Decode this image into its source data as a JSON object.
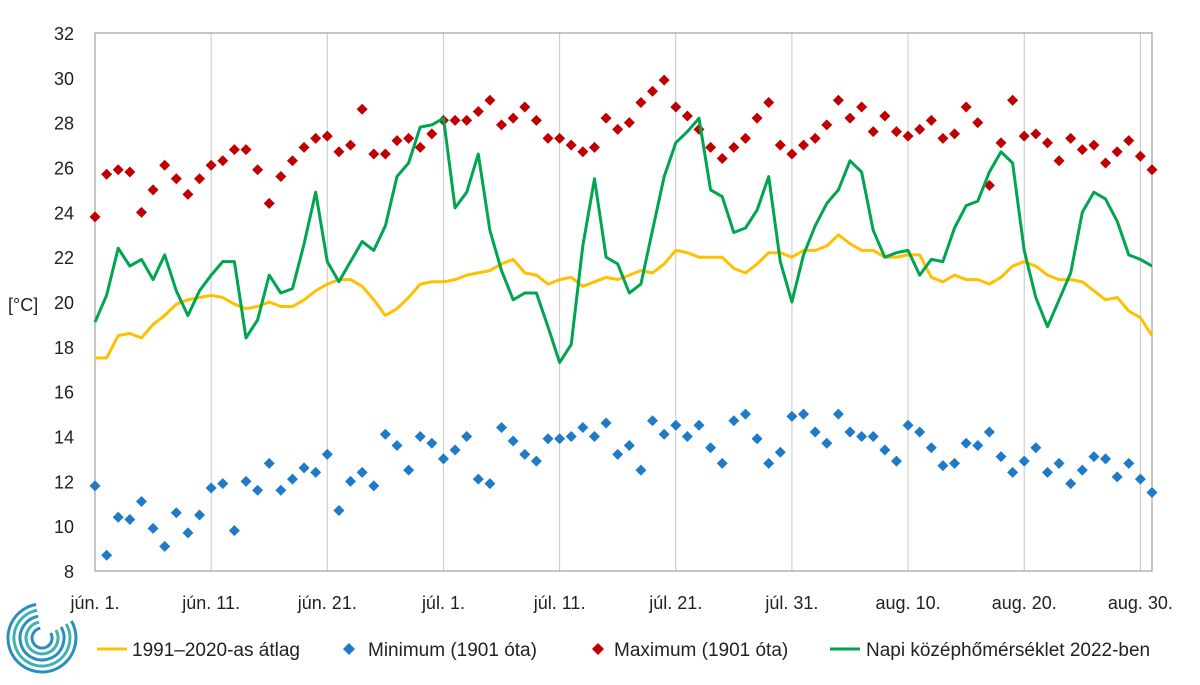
{
  "chart_data": {
    "type": "line",
    "title": "",
    "xlabel": "",
    "ylabel": "[°C]",
    "ylim": [
      8,
      32
    ],
    "yticks": [
      8,
      10,
      12,
      14,
      16,
      18,
      20,
      22,
      24,
      26,
      28,
      30,
      32
    ],
    "x_start": "jún. 1.",
    "x_end": "aug. 31.",
    "xtick_labels": [
      "jún. 1.",
      "jún. 11.",
      "jún. 21.",
      "júl. 1.",
      "júl. 11.",
      "júl. 21.",
      "júl. 31.",
      "aug. 10.",
      "aug. 20.",
      "aug. 30."
    ],
    "grid": "vertical",
    "legend_position": "bottom",
    "series": [
      {
        "name": "1991–2020-as átlag",
        "color": "#FFC000",
        "kind": "line",
        "values": [
          17.5,
          17.5,
          18.5,
          18.6,
          18.4,
          19.0,
          19.4,
          19.9,
          20.1,
          20.2,
          20.3,
          20.2,
          19.9,
          19.7,
          19.8,
          20.0,
          19.8,
          19.8,
          20.1,
          20.5,
          20.8,
          21.0,
          21.0,
          20.7,
          20.1,
          19.4,
          19.7,
          20.2,
          20.8,
          20.9,
          20.9,
          21.0,
          21.2,
          21.3,
          21.4,
          21.7,
          21.9,
          21.3,
          21.2,
          20.8,
          21.0,
          21.1,
          20.7,
          20.9,
          21.1,
          21.0,
          21.2,
          21.4,
          21.3,
          21.7,
          22.3,
          22.2,
          22.0,
          22.0,
          22.0,
          21.5,
          21.3,
          21.7,
          22.2,
          22.2,
          22.0,
          22.3,
          22.3,
          22.5,
          23.0,
          22.6,
          22.3,
          22.3,
          22.0,
          22.0,
          22.1,
          22.1,
          21.1,
          20.9,
          21.2,
          21.0,
          21.0,
          20.8,
          21.1,
          21.6,
          21.8,
          21.6,
          21.2,
          21.0,
          21.0,
          20.9,
          20.5,
          20.1,
          20.2,
          19.6,
          19.3,
          18.5
        ]
      },
      {
        "name": "Minimum (1901 óta)",
        "color": "#1F7AC8",
        "kind": "scatter",
        "marker": "diamond",
        "values": [
          11.8,
          8.7,
          10.4,
          10.3,
          11.1,
          9.9,
          9.1,
          10.6,
          9.7,
          10.5,
          11.7,
          11.9,
          9.8,
          12.0,
          11.6,
          12.8,
          11.6,
          12.1,
          12.6,
          12.4,
          13.2,
          10.7,
          12.0,
          12.4,
          11.8,
          14.1,
          13.6,
          12.5,
          14.0,
          13.7,
          13.0,
          13.4,
          14.0,
          12.1,
          11.9,
          14.4,
          13.8,
          13.2,
          12.9,
          13.9,
          13.9,
          14.0,
          14.4,
          14.0,
          14.6,
          13.2,
          13.6,
          12.5,
          14.7,
          14.1,
          14.5,
          14.0,
          14.5,
          13.5,
          12.8,
          14.7,
          15.0,
          13.9,
          12.8,
          13.3,
          14.9,
          15.0,
          14.2,
          13.7,
          15.0,
          14.2,
          14.0,
          14.0,
          13.4,
          12.9,
          14.5,
          14.2,
          13.5,
          12.7,
          12.8,
          13.7,
          13.6,
          14.2,
          13.1,
          12.4,
          12.9,
          13.5,
          12.4,
          12.8,
          11.9,
          12.5,
          13.1,
          13.0,
          12.2,
          12.8,
          12.1,
          11.5
        ]
      },
      {
        "name": "Maximum (1901 óta)",
        "color": "#C00000",
        "kind": "scatter",
        "marker": "diamond",
        "values": [
          23.8,
          25.7,
          25.9,
          25.8,
          24.0,
          25.0,
          26.1,
          25.5,
          24.8,
          25.5,
          26.1,
          26.3,
          26.8,
          26.8,
          25.9,
          24.4,
          25.6,
          26.3,
          26.9,
          27.3,
          27.4,
          26.7,
          27.0,
          28.6,
          26.6,
          26.6,
          27.2,
          27.3,
          26.9,
          27.5,
          28.1,
          28.1,
          28.1,
          28.5,
          29.0,
          27.9,
          28.2,
          28.7,
          28.1,
          27.3,
          27.3,
          27.0,
          26.7,
          26.9,
          28.2,
          27.7,
          28.0,
          28.9,
          29.4,
          29.9,
          28.7,
          28.3,
          27.7,
          26.9,
          26.4,
          26.9,
          27.3,
          28.2,
          28.9,
          27.0,
          26.6,
          27.0,
          27.3,
          27.9,
          29.0,
          28.2,
          28.7,
          27.6,
          28.3,
          27.6,
          27.4,
          27.7,
          28.1,
          27.3,
          27.5,
          28.7,
          28.0,
          25.2,
          27.1,
          29.0,
          27.4,
          27.5,
          27.1,
          26.3,
          27.3,
          26.8,
          27.0,
          26.2,
          26.7,
          27.2,
          26.5,
          25.9
        ]
      },
      {
        "name": "Napi középhőmérséklet 2022-ben",
        "color": "#00A550",
        "kind": "line",
        "values": [
          19.1,
          20.3,
          22.4,
          21.6,
          21.9,
          21.0,
          22.1,
          20.5,
          19.4,
          20.5,
          21.2,
          21.8,
          21.8,
          18.4,
          19.2,
          21.2,
          20.4,
          20.6,
          22.6,
          24.9,
          21.8,
          20.9,
          21.8,
          22.7,
          22.3,
          23.4,
          25.6,
          26.2,
          27.8,
          27.9,
          28.2,
          24.2,
          24.9,
          26.6,
          23.2,
          21.4,
          20.1,
          20.4,
          20.4,
          18.9,
          17.3,
          18.1,
          22.5,
          25.5,
          22.0,
          21.7,
          20.4,
          20.8,
          23.2,
          25.6,
          27.1,
          27.6,
          28.2,
          25.0,
          24.7,
          23.1,
          23.3,
          24.1,
          25.6,
          21.8,
          20.0,
          22.1,
          23.4,
          24.4,
          25.0,
          26.3,
          25.8,
          23.2,
          22.0,
          22.2,
          22.3,
          21.2,
          21.9,
          21.8,
          23.3,
          24.3,
          24.5,
          25.8,
          26.7,
          26.2,
          22.3,
          20.2,
          18.9,
          20.1,
          21.3,
          24.0,
          24.9,
          24.6,
          23.6,
          22.1,
          21.9,
          21.6
        ]
      }
    ]
  }
}
